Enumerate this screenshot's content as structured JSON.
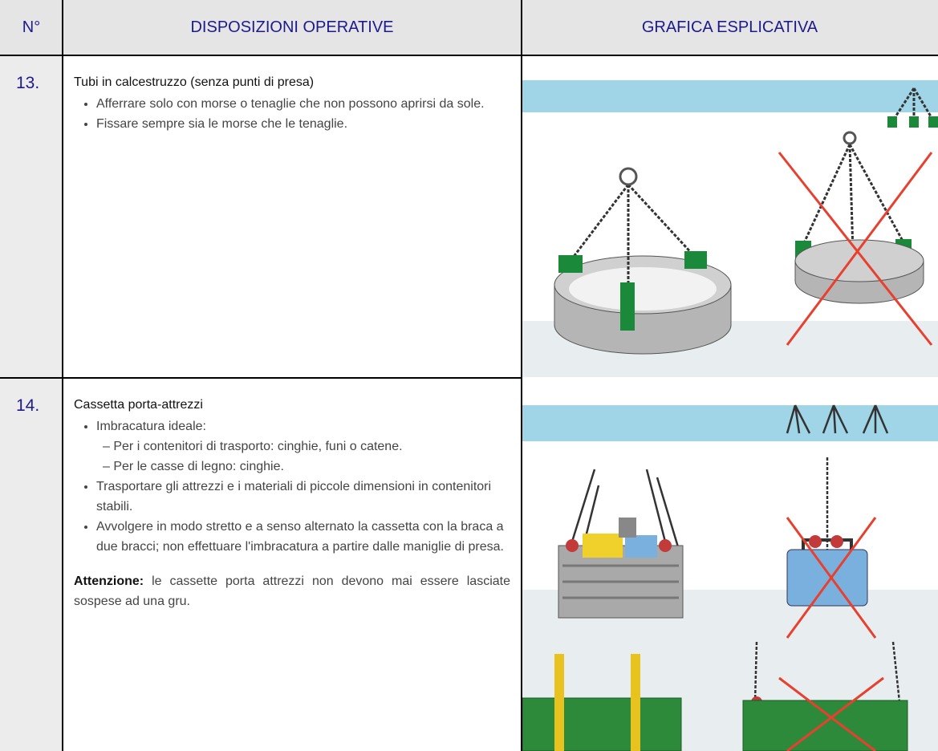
{
  "header": {
    "number": "N°",
    "instructions": "DISPOSIZIONI OPERATIVE",
    "graphics": "GRAFICA ESPLICATIVA"
  },
  "rows": [
    {
      "number": "13.",
      "title": "Tubi in calcestruzzo (senza punti di presa)",
      "bullets": [
        {
          "text": "Afferrare solo con morse o tenaglie che non possono aprirsi da sole."
        },
        {
          "text": "Fissare sempre sia le morse che le tenaglie."
        }
      ]
    },
    {
      "number": "14.",
      "title": "Cassetta porta-attrezzi",
      "bullets": [
        {
          "text": "Imbracatura ideale:",
          "subitems": [
            "– Per i contenitori di trasporto: cinghie, funi o catene.",
            "– Per le casse di legno: cinghie."
          ]
        },
        {
          "text": "Trasportare gli attrezzi e i materiali di piccole dimensioni in contenitori stabili."
        },
        {
          "text": "Avvolgere in modo stretto e a senso alternato la cassetta con la braca a due bracci; non effettuare l'imbracatura a partire dalle maniglie di presa."
        }
      ],
      "note": {
        "label": "Attenzione:",
        "text": "le cassette porta attrezzi non devono mai essere lasciate sospese ad una gru."
      }
    }
  ]
}
